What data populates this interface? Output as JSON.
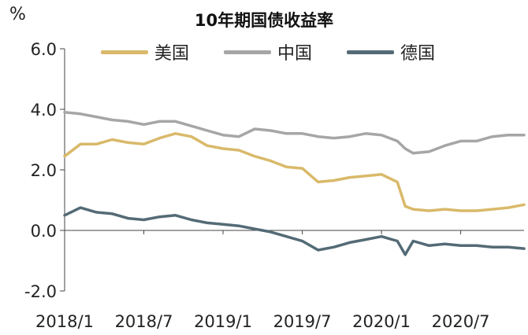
{
  "unit": "%",
  "chart_data": {
    "type": "line",
    "title": "10年期国债收益率",
    "ylabel": "%",
    "xlabel": "",
    "ylim": [
      -2.0,
      6.0
    ],
    "y_ticks": [
      "6.0",
      "4.0",
      "2.0",
      "0.0",
      "-2.0"
    ],
    "y_tick_values": [
      6.0,
      4.0,
      2.0,
      0.0,
      -2.0
    ],
    "x_ticks": [
      "2018/1",
      "2018/7",
      "2019/1",
      "2019/7",
      "2020/1",
      "2020/7"
    ],
    "x_tick_values": [
      2018.0,
      2018.5,
      2019.0,
      2019.5,
      2020.0,
      2020.5
    ],
    "xlim": [
      2018.0,
      2020.9
    ],
    "legend_position": "top",
    "grid": false,
    "x": [
      2018.0,
      2018.1,
      2018.2,
      2018.3,
      2018.4,
      2018.5,
      2018.6,
      2018.7,
      2018.8,
      2018.9,
      2019.0,
      2019.1,
      2019.2,
      2019.3,
      2019.4,
      2019.5,
      2019.6,
      2019.7,
      2019.8,
      2019.9,
      2020.0,
      2020.1,
      2020.15,
      2020.2,
      2020.3,
      2020.4,
      2020.5,
      2020.6,
      2020.7,
      2020.8,
      2020.9
    ],
    "series": [
      {
        "name": "美国",
        "color": "#D9B96A",
        "values": [
          2.45,
          2.85,
          2.85,
          3.0,
          2.9,
          2.85,
          3.05,
          3.2,
          3.1,
          2.8,
          2.7,
          2.65,
          2.45,
          2.3,
          2.1,
          2.05,
          1.6,
          1.65,
          1.75,
          1.8,
          1.85,
          1.6,
          0.8,
          0.7,
          0.65,
          0.7,
          0.65,
          0.65,
          0.7,
          0.75,
          0.85
        ]
      },
      {
        "name": "中国",
        "color": "#A6A6A6",
        "values": [
          3.9,
          3.85,
          3.75,
          3.65,
          3.6,
          3.5,
          3.6,
          3.6,
          3.45,
          3.3,
          3.15,
          3.1,
          3.35,
          3.3,
          3.2,
          3.2,
          3.1,
          3.05,
          3.1,
          3.2,
          3.15,
          2.95,
          2.7,
          2.55,
          2.6,
          2.8,
          2.95,
          2.95,
          3.1,
          3.15,
          3.15
        ]
      },
      {
        "name": "德国",
        "color": "#546B76",
        "values": [
          0.5,
          0.75,
          0.6,
          0.55,
          0.4,
          0.35,
          0.45,
          0.5,
          0.35,
          0.25,
          0.2,
          0.15,
          0.05,
          -0.05,
          -0.2,
          -0.35,
          -0.65,
          -0.55,
          -0.4,
          -0.3,
          -0.2,
          -0.35,
          -0.8,
          -0.35,
          -0.5,
          -0.45,
          -0.5,
          -0.5,
          -0.55,
          -0.55,
          -0.6
        ]
      }
    ]
  }
}
